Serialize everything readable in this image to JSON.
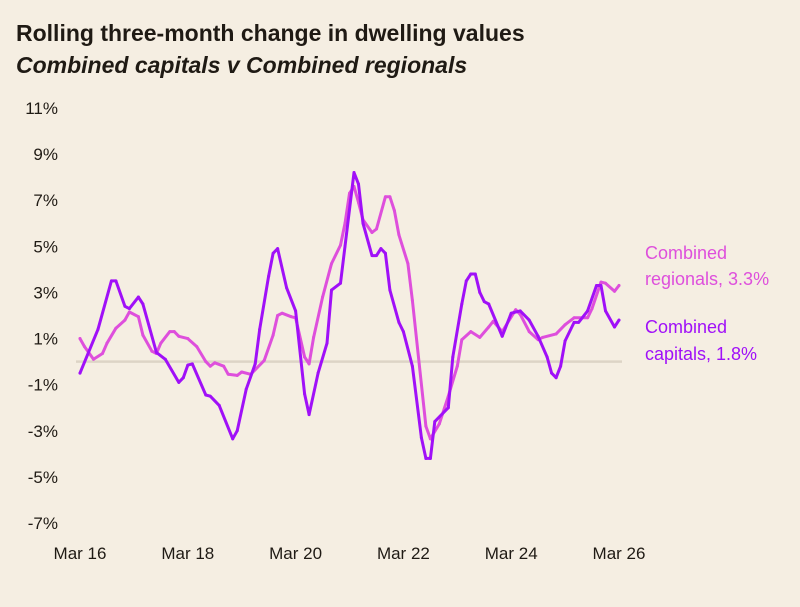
{
  "chart_data": {
    "type": "line",
    "title": "Rolling three-month change in dwelling values",
    "subtitle": "Combined capitals v Combined regionals",
    "xlabel": "",
    "ylabel": "",
    "ylim": [
      -7,
      11
    ],
    "y_ticks": [
      "11%",
      "9%",
      "7%",
      "5%",
      "3%",
      "1%",
      "-1%",
      "-3%",
      "-5%",
      "-7%"
    ],
    "y_tick_values": [
      11,
      9,
      7,
      5,
      3,
      1,
      -1,
      -3,
      -5,
      -7
    ],
    "x_ticks": [
      "Mar 16",
      "Mar 18",
      "Mar 20",
      "Mar 22",
      "Mar 24",
      "Mar 26"
    ],
    "x_tick_values": [
      "2016-03",
      "2018-03",
      "2020-03",
      "2022-03",
      "2024-03",
      "2026-03"
    ],
    "x_range": [
      "2016-03",
      "2026-03"
    ],
    "grid": false,
    "zero_line": true,
    "series": [
      {
        "label_line1": "Combined",
        "label_line2": "regionals, 3.3%",
        "color": "#de4fdc",
        "points": [
          [
            "2016-03",
            1.0
          ],
          [
            "2016-04",
            0.65
          ],
          [
            "2016-06",
            0.1
          ],
          [
            "2016-08",
            0.35
          ],
          [
            "2016-09",
            0.8
          ],
          [
            "2016-11",
            1.45
          ],
          [
            "2017-01",
            1.8
          ],
          [
            "2017-02",
            2.15
          ],
          [
            "2017-04",
            1.95
          ],
          [
            "2017-05",
            1.15
          ],
          [
            "2017-07",
            0.45
          ],
          [
            "2017-08",
            0.35
          ],
          [
            "2017-09",
            0.8
          ],
          [
            "2017-11",
            1.3
          ],
          [
            "2017-12",
            1.3
          ],
          [
            "2018-01",
            1.1
          ],
          [
            "2018-03",
            1.0
          ],
          [
            "2018-05",
            0.65
          ],
          [
            "2018-07",
            0.0
          ],
          [
            "2018-08",
            -0.2
          ],
          [
            "2018-09",
            -0.05
          ],
          [
            "2018-11",
            -0.2
          ],
          [
            "2018-12",
            -0.55
          ],
          [
            "2019-02",
            -0.6
          ],
          [
            "2019-03",
            -0.45
          ],
          [
            "2019-05",
            -0.55
          ],
          [
            "2019-08",
            0.05
          ],
          [
            "2019-10",
            1.15
          ],
          [
            "2019-11",
            2.0
          ],
          [
            "2019-12",
            2.1
          ],
          [
            "2020-02",
            1.95
          ],
          [
            "2020-03",
            1.9
          ],
          [
            "2020-05",
            0.2
          ],
          [
            "2020-06",
            -0.1
          ],
          [
            "2020-07",
            1.05
          ],
          [
            "2020-09",
            2.8
          ],
          [
            "2020-11",
            4.25
          ],
          [
            "2021-01",
            5.05
          ],
          [
            "2021-02",
            6.0
          ],
          [
            "2021-03",
            7.3
          ],
          [
            "2021-04",
            7.6
          ],
          [
            "2021-05",
            6.9
          ],
          [
            "2021-06",
            6.15
          ],
          [
            "2021-08",
            5.6
          ],
          [
            "2021-09",
            5.75
          ],
          [
            "2021-11",
            7.15
          ],
          [
            "2021-12",
            7.15
          ],
          [
            "2022-01",
            6.55
          ],
          [
            "2022-02",
            5.5
          ],
          [
            "2022-04",
            4.25
          ],
          [
            "2022-05",
            2.65
          ],
          [
            "2022-08",
            -2.8
          ],
          [
            "2022-09",
            -3.35
          ],
          [
            "2022-11",
            -2.7
          ],
          [
            "2023-01",
            -1.5
          ],
          [
            "2023-03",
            -0.2
          ],
          [
            "2023-04",
            0.95
          ],
          [
            "2023-06",
            1.3
          ],
          [
            "2023-08",
            1.05
          ],
          [
            "2023-10",
            1.5
          ],
          [
            "2023-11",
            1.75
          ],
          [
            "2024-01",
            1.3
          ],
          [
            "2024-04",
            2.25
          ],
          [
            "2024-05",
            2.05
          ],
          [
            "2024-07",
            1.3
          ],
          [
            "2024-09",
            0.95
          ],
          [
            "2024-10",
            1.05
          ],
          [
            "2025-01",
            1.2
          ],
          [
            "2025-03",
            1.6
          ],
          [
            "2025-05",
            1.9
          ],
          [
            "2025-08",
            1.9
          ],
          [
            "2025-09",
            2.3
          ],
          [
            "2025-11",
            3.45
          ],
          [
            "2025-12",
            3.4
          ],
          [
            "2026-02",
            3.05
          ],
          [
            "2026-03",
            3.3
          ]
        ]
      },
      {
        "label_line1": "Combined",
        "label_line2": "capitals, 1.8%",
        "color": "#a010f8",
        "points": [
          [
            "2016-03",
            -0.5
          ],
          [
            "2016-07",
            1.4
          ],
          [
            "2016-10",
            3.5
          ],
          [
            "2016-11",
            3.5
          ],
          [
            "2017-01",
            2.4
          ],
          [
            "2017-02",
            2.3
          ],
          [
            "2017-04",
            2.8
          ],
          [
            "2017-05",
            2.5
          ],
          [
            "2017-08",
            0.4
          ],
          [
            "2017-10",
            0.1
          ],
          [
            "2018-01",
            -0.9
          ],
          [
            "2018-02",
            -0.7
          ],
          [
            "2018-03",
            -0.15
          ],
          [
            "2018-04",
            -0.1
          ],
          [
            "2018-07",
            -1.45
          ],
          [
            "2018-08",
            -1.5
          ],
          [
            "2018-10",
            -1.9
          ],
          [
            "2019-01",
            -3.35
          ],
          [
            "2019-02",
            -3.0
          ],
          [
            "2019-04",
            -1.2
          ],
          [
            "2019-06",
            -0.1
          ],
          [
            "2019-07",
            1.4
          ],
          [
            "2019-09",
            3.7
          ],
          [
            "2019-10",
            4.7
          ],
          [
            "2019-11",
            4.9
          ],
          [
            "2020-01",
            3.2
          ],
          [
            "2020-03",
            2.2
          ],
          [
            "2020-05",
            -1.4
          ],
          [
            "2020-06",
            -2.3
          ],
          [
            "2020-08",
            -0.5
          ],
          [
            "2020-10",
            0.8
          ],
          [
            "2020-11",
            3.1
          ],
          [
            "2021-01",
            3.4
          ],
          [
            "2021-02",
            5.0
          ],
          [
            "2021-04",
            8.2
          ],
          [
            "2021-05",
            7.7
          ],
          [
            "2021-06",
            6.0
          ],
          [
            "2021-08",
            4.6
          ],
          [
            "2021-09",
            4.6
          ],
          [
            "2021-10",
            4.9
          ],
          [
            "2021-11",
            4.7
          ],
          [
            "2021-12",
            3.1
          ],
          [
            "2022-02",
            1.7
          ],
          [
            "2022-03",
            1.3
          ],
          [
            "2022-05",
            -0.2
          ],
          [
            "2022-07",
            -3.3
          ],
          [
            "2022-08",
            -4.2
          ],
          [
            "2022-09",
            -4.2
          ],
          [
            "2022-10",
            -2.6
          ],
          [
            "2023-01",
            -2.0
          ],
          [
            "2023-02",
            0.2
          ],
          [
            "2023-04",
            2.5
          ],
          [
            "2023-05",
            3.5
          ],
          [
            "2023-06",
            3.8
          ],
          [
            "2023-07",
            3.8
          ],
          [
            "2023-08",
            3.0
          ],
          [
            "2023-09",
            2.6
          ],
          [
            "2023-10",
            2.5
          ],
          [
            "2024-01",
            1.1
          ],
          [
            "2024-03",
            2.1
          ],
          [
            "2024-05",
            2.2
          ],
          [
            "2024-07",
            1.8
          ],
          [
            "2024-09",
            1.1
          ],
          [
            "2024-11",
            0.2
          ],
          [
            "2024-12",
            -0.5
          ],
          [
            "2025-01",
            -0.7
          ],
          [
            "2025-02",
            -0.2
          ],
          [
            "2025-03",
            0.9
          ],
          [
            "2025-05",
            1.7
          ],
          [
            "2025-06",
            1.7
          ],
          [
            "2025-08",
            2.2
          ],
          [
            "2025-10",
            3.3
          ],
          [
            "2025-11",
            3.3
          ],
          [
            "2025-12",
            2.2
          ],
          [
            "2026-02",
            1.5
          ],
          [
            "2026-03",
            1.8
          ]
        ]
      }
    ]
  }
}
